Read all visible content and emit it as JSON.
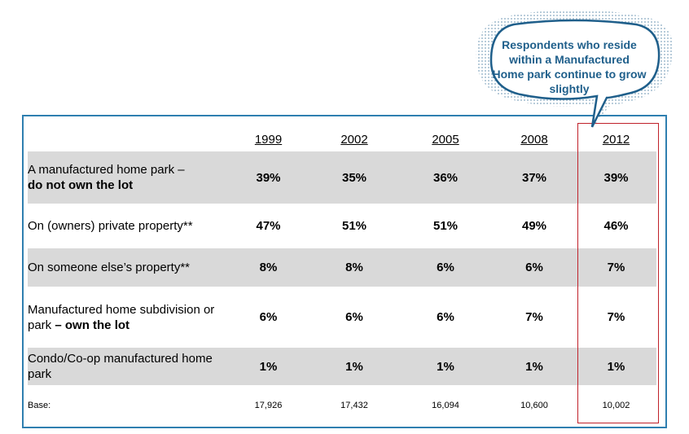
{
  "callout": {
    "text": "Respondents who reside within a Manufactured Home park continue to grow slightly"
  },
  "colors": {
    "frame": "#2f7fb0",
    "highlight": "#c0212a",
    "callout_text": "#1f5f8b",
    "row_shade": "#d9d9d9"
  },
  "chart_data": {
    "type": "table",
    "columns": [
      "1999",
      "2002",
      "2005",
      "2008",
      "2012"
    ],
    "rows": [
      {
        "label_plain": "A manufactured home park –",
        "label_bold": "do not own the lot",
        "values": [
          "39%",
          "35%",
          "36%",
          "37%",
          "39%"
        ]
      },
      {
        "label_plain": "On (owners) private property**",
        "label_bold": "",
        "values": [
          "47%",
          "51%",
          "51%",
          "49%",
          "46%"
        ]
      },
      {
        "label_plain": "On someone else’s property**",
        "label_bold": "",
        "values": [
          "8%",
          "8%",
          "6%",
          "6%",
          "7%"
        ]
      },
      {
        "label_plain": "Manufactured home subdivision or park",
        "label_bold": "– own the lot",
        "values": [
          "6%",
          "6%",
          "6%",
          "7%",
          "7%"
        ]
      },
      {
        "label_plain": "Condo/Co-op manufactured home park",
        "label_bold": "",
        "values": [
          "1%",
          "1%",
          "1%",
          "1%",
          "1%"
        ]
      }
    ],
    "base": {
      "label": "Base:",
      "values": [
        "17,926",
        "17,432",
        "16,094",
        "10,600",
        "10,002"
      ]
    },
    "highlighted_column": "2012"
  }
}
